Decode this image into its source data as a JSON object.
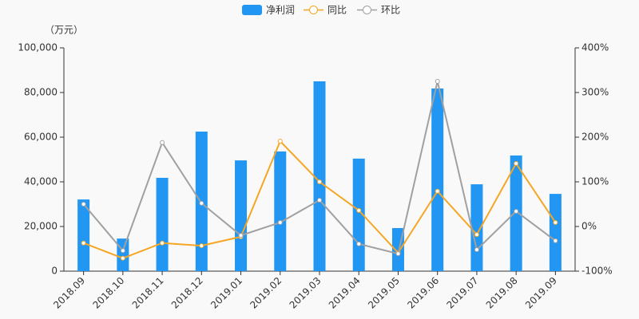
{
  "chart_data": {
    "type": "bar-line",
    "y_unit_label": "（万元）",
    "categories": [
      "2018.09",
      "2018.10",
      "2018.11",
      "2018.12",
      "2019.01",
      "2019.02",
      "2019.03",
      "2019.04",
      "2019.05",
      "2019.06",
      "2019.07",
      "2019.08",
      "2019.09"
    ],
    "series": [
      {
        "name": "净利润",
        "type": "bar",
        "color": "#2196f3",
        "values": [
          32100,
          14600,
          41800,
          62500,
          49600,
          53600,
          85000,
          50400,
          19300,
          81800,
          38900,
          51800,
          34600
        ]
      },
      {
        "name": "同比",
        "type": "line",
        "axis": "y2",
        "color": "#f5a623",
        "values": [
          -37,
          -71,
          -37,
          -43,
          -23,
          191,
          100,
          36,
          -59,
          79,
          -18,
          141,
          9
        ]
      },
      {
        "name": "环比",
        "type": "line",
        "axis": "y2",
        "color": "#a0a0a0",
        "values": [
          50,
          -54,
          188,
          52,
          -20,
          9,
          59,
          -39,
          -61,
          325,
          -52,
          34,
          -32
        ]
      }
    ],
    "ylim": [
      0,
      100000
    ],
    "yticks": [
      0,
      {
        "value": 20000,
        "label": "20,000"
      },
      {
        "value": 40000,
        "label": "40,000"
      },
      {
        "value": 60000,
        "label": "60,000"
      },
      {
        "value": 80000,
        "label": "80,000"
      },
      {
        "value": 100000,
        "label": "100,000"
      }
    ],
    "y2lim": [
      -100,
      400
    ],
    "y2ticks": [
      {
        "value": -100,
        "label": "-100%"
      },
      {
        "value": 0,
        "label": "0%"
      },
      {
        "value": 100,
        "label": "100%"
      },
      {
        "value": 200,
        "label": "200%"
      },
      {
        "value": 300,
        "label": "300%"
      },
      {
        "value": 400,
        "label": "400%"
      }
    ]
  }
}
